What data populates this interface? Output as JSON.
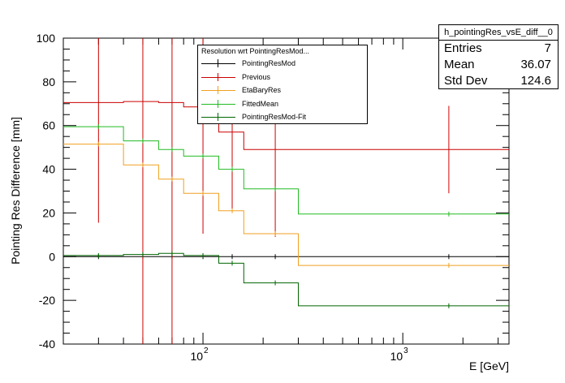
{
  "chart_data": {
    "type": "line",
    "title": "",
    "xlabel": "E [GeV]",
    "ylabel": "Pointing Res Difference [mm]",
    "xscale": "log",
    "xlim": [
      20,
      3400
    ],
    "ylim": [
      -40,
      100
    ],
    "x_tick_labels": [
      "10^2",
      "10^3"
    ],
    "y_ticks": [
      -40,
      -20,
      0,
      20,
      40,
      60,
      80,
      100
    ],
    "bin_edges": [
      20,
      40,
      60,
      80,
      120,
      160,
      300,
      3400
    ],
    "bin_centers": [
      30,
      50,
      70,
      100,
      140,
      230,
      1700
    ],
    "series": [
      {
        "name": "PointingResMod",
        "color": "#000000",
        "values": [
          0,
          0,
          0,
          0,
          0,
          0,
          0
        ],
        "errors": [
          0,
          0,
          0,
          0,
          0,
          0,
          0
        ]
      },
      {
        "name": "Previous",
        "color": "#cc0000",
        "values": [
          70.5,
          71,
          70.5,
          68.5,
          57,
          49,
          49
        ],
        "errors": [
          55,
          140,
          140,
          58,
          37,
          40,
          20
        ]
      },
      {
        "name": "EtaBaryRes",
        "color": "#f0a020",
        "values": [
          51.5,
          42,
          35.5,
          29,
          21,
          10.5,
          -4
        ],
        "errors": [
          0,
          0,
          0,
          0,
          0,
          0,
          0
        ]
      },
      {
        "name": "FittedMean",
        "color": "#22bb22",
        "values": [
          59.5,
          53,
          49,
          46,
          40,
          31,
          19.5
        ],
        "errors": [
          0,
          0,
          0,
          0,
          0,
          0,
          0
        ]
      },
      {
        "name": "PointingResMod-Fit",
        "color": "#006600",
        "values": [
          0.5,
          1,
          1.5,
          0.5,
          -3,
          -12,
          -22.5
        ],
        "errors": [
          0,
          0,
          0,
          0,
          0,
          0,
          0
        ]
      }
    ],
    "legend": {
      "header": "Resolution wrt PointingResMod...",
      "entries": [
        "PointingResMod",
        "Previous",
        "EtaBaryRes",
        "FittedMean",
        "PointingResMod-Fit"
      ]
    },
    "stats": {
      "title": "h_pointingRes_vsE_diff__0",
      "rows": [
        {
          "label": "Entries",
          "value": "7"
        },
        {
          "label": "Mean",
          "value": "36.07"
        },
        {
          "label": "Std Dev",
          "value": "124.6"
        }
      ]
    }
  }
}
